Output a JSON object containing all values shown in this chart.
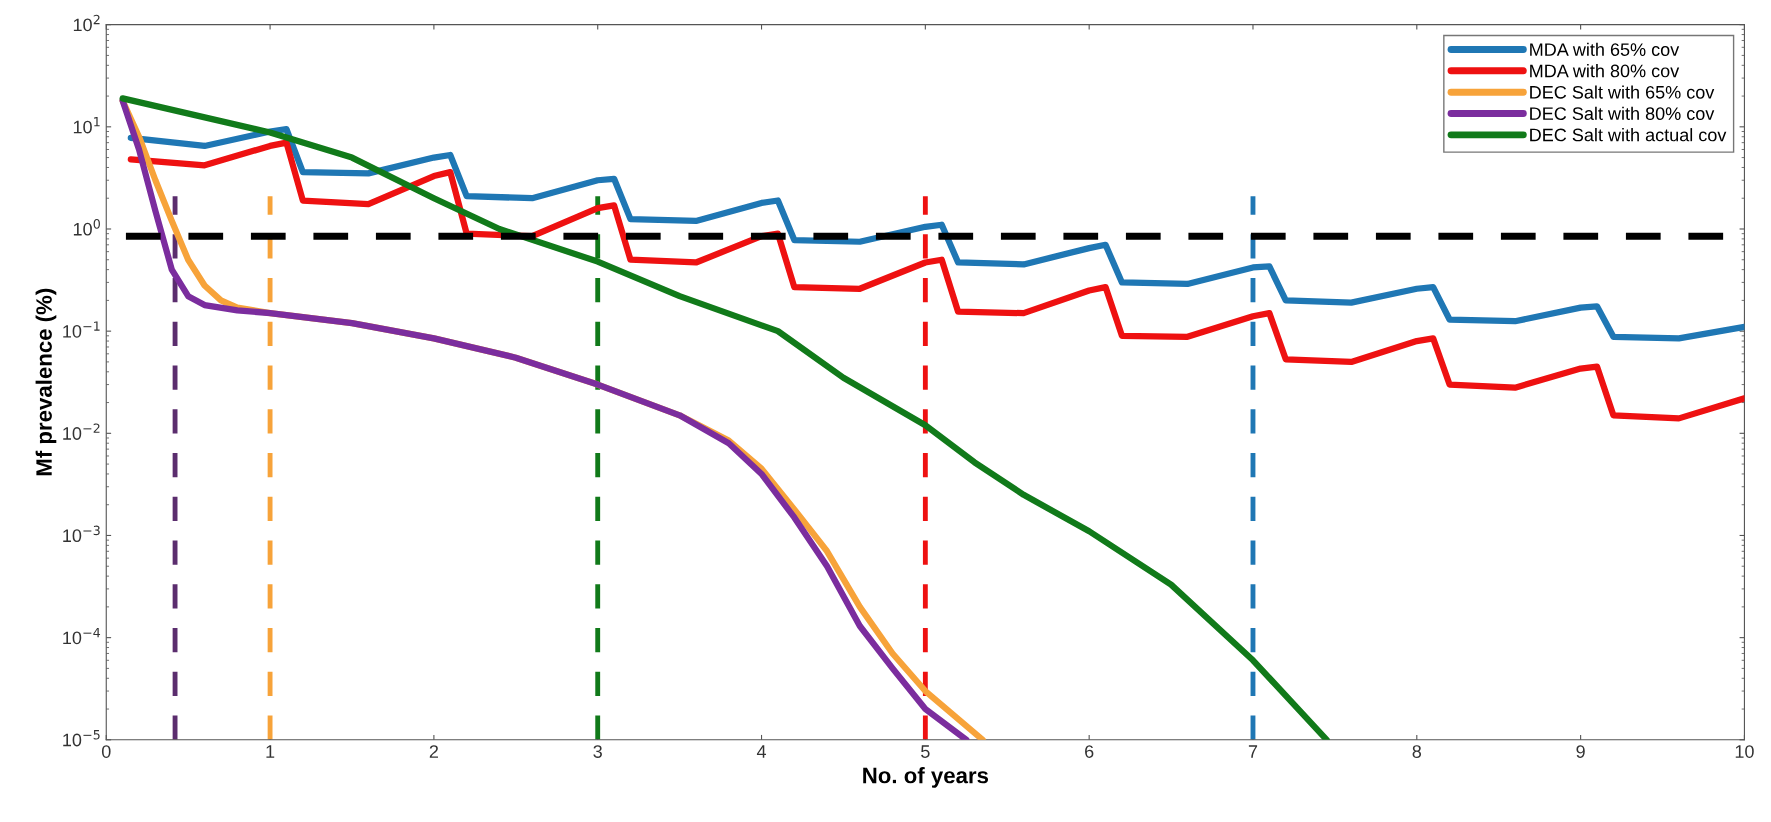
{
  "chart_data": {
    "type": "line",
    "xlabel": "No. of years",
    "ylabel": "Mf prevalence (%)",
    "log": "y",
    "legend": "top right",
    "grid": false,
    "line_style": "solid",
    "marker": "none",
    "xlim": [
      0,
      10
    ],
    "xticks": [
      0,
      1,
      2,
      3,
      4,
      5,
      6,
      7,
      8,
      9,
      10
    ],
    "ylim": [
      1e-05,
      100
    ],
    "yticks": [
      {
        "value": 1e-05,
        "label": "10$^{−5}$"
      },
      {
        "value": 0.0001,
        "label": "10$^{−4}$"
      },
      {
        "value": 0.001,
        "label": "10$^{−3}$"
      },
      {
        "value": 0.01,
        "label": "10$^{−2}$"
      },
      {
        "value": 0.1,
        "label": "10$^{−1}$"
      },
      {
        "value": 1,
        "label": "10$^{0}$"
      },
      {
        "value": 10,
        "label": "10$^{1}$"
      },
      {
        "value": 100,
        "label": "10$^{2}$"
      }
    ],
    "series": [
      {
        "name": "MDA with 65% cov",
        "color": "#1f77b4",
        "x": [
          0.15,
          0.6,
          1.0,
          1.1,
          1.2,
          1.6,
          2.0,
          2.1,
          2.2,
          2.6,
          3.0,
          3.1,
          3.2,
          3.6,
          4.0,
          4.1,
          4.2,
          4.6,
          5.0,
          5.1,
          5.2,
          5.6,
          6.0,
          6.1,
          6.2,
          6.6,
          7.0,
          7.1,
          7.2,
          7.6,
          8.0,
          8.1,
          8.2,
          8.6,
          9.0,
          9.1,
          9.2,
          9.6,
          10
        ],
        "values": [
          7.8,
          6.5,
          9,
          9.5,
          3.6,
          3.5,
          5,
          5.3,
          2.1,
          2.0,
          3.0,
          3.1,
          1.25,
          1.2,
          1.8,
          1.9,
          0.78,
          0.75,
          1.05,
          1.1,
          0.47,
          0.45,
          0.65,
          0.7,
          0.3,
          0.29,
          0.42,
          0.43,
          0.2,
          0.19,
          0.26,
          0.27,
          0.13,
          0.125,
          0.17,
          0.175,
          0.088,
          0.085,
          0.11
        ]
      },
      {
        "name": "MDA with 80% cov",
        "color": "#ee1111",
        "x": [
          0.15,
          0.6,
          1.0,
          1.1,
          1.2,
          1.6,
          2.0,
          2.1,
          2.2,
          2.6,
          3.0,
          3.1,
          3.2,
          3.6,
          4.0,
          4.1,
          4.2,
          4.6,
          5.0,
          5.1,
          5.2,
          5.6,
          6.0,
          6.1,
          6.2,
          6.6,
          7.0,
          7.1,
          7.2,
          7.6,
          8.0,
          8.1,
          8.2,
          8.6,
          9.0,
          9.1,
          9.2,
          9.6,
          10
        ],
        "values": [
          4.8,
          4.2,
          6.5,
          7,
          1.9,
          1.75,
          3.3,
          3.6,
          0.9,
          0.85,
          1.6,
          1.7,
          0.5,
          0.47,
          0.85,
          0.9,
          0.27,
          0.26,
          0.47,
          0.5,
          0.155,
          0.15,
          0.25,
          0.27,
          0.09,
          0.088,
          0.14,
          0.15,
          0.053,
          0.05,
          0.08,
          0.085,
          0.03,
          0.028,
          0.043,
          0.045,
          0.015,
          0.014,
          0.022
        ]
      },
      {
        "name": "DEC Salt with 65% cov",
        "color": "#f7a33a",
        "x": [
          0.1,
          0.2,
          0.3,
          0.4,
          0.5,
          0.6,
          0.7,
          0.8,
          1.0,
          1.5,
          2.0,
          2.5,
          3.0,
          3.5,
          3.8,
          4.0,
          4.2,
          4.4,
          4.6,
          4.8,
          5.0,
          5.35
        ],
        "values": [
          18,
          8,
          3,
          1.2,
          0.5,
          0.28,
          0.2,
          0.17,
          0.15,
          0.12,
          0.085,
          0.055,
          0.03,
          0.015,
          0.0085,
          0.0045,
          0.0018,
          0.0007,
          0.0002,
          7e-05,
          3e-05,
          1e-05
        ]
      },
      {
        "name": "DEC Salt with 80% cov",
        "color": "#7b2d9e",
        "x": [
          0.1,
          0.2,
          0.3,
          0.4,
          0.5,
          0.6,
          0.8,
          1.0,
          1.5,
          2.0,
          2.5,
          3.0,
          3.5,
          3.8,
          4.0,
          4.2,
          4.4,
          4.6,
          4.8,
          5.0,
          5.25
        ],
        "values": [
          18,
          6,
          1.5,
          0.4,
          0.22,
          0.18,
          0.16,
          0.15,
          0.12,
          0.085,
          0.055,
          0.03,
          0.015,
          0.008,
          0.004,
          0.0015,
          0.0005,
          0.00013,
          5e-05,
          2e-05,
          1e-05
        ]
      },
      {
        "name": "DEC Salt with actual cov",
        "color": "#117a1a",
        "x": [
          0.1,
          1.0,
          1.5,
          2.0,
          2.4,
          3.0,
          3.5,
          4.1,
          4.5,
          5.0,
          5.3,
          5.6,
          6.0,
          6.5,
          7.0,
          7.45
        ],
        "values": [
          19,
          8.8,
          5,
          2.0,
          1.0,
          0.48,
          0.22,
          0.1,
          0.035,
          0.012,
          0.0052,
          0.0025,
          0.0011,
          0.00033,
          6e-05,
          1e-05
        ]
      }
    ],
    "ref_lines": [
      {
        "axis": "y",
        "value": 0.85,
        "color": "#000000",
        "line_style": "dashed"
      },
      {
        "axis": "x",
        "value": 0.42,
        "color": "#5b2d6e",
        "line_style": "dashed"
      },
      {
        "axis": "x",
        "value": 1,
        "color": "#f7a33a",
        "line_style": "dashed"
      },
      {
        "axis": "x",
        "value": 3,
        "color": "#117a1a",
        "line_style": "dashed"
      },
      {
        "axis": "x",
        "value": 5,
        "color": "#ee1111",
        "line_style": "dashed"
      },
      {
        "axis": "x",
        "value": 7,
        "color": "#1f77b4",
        "line_style": "dashed"
      }
    ]
  }
}
